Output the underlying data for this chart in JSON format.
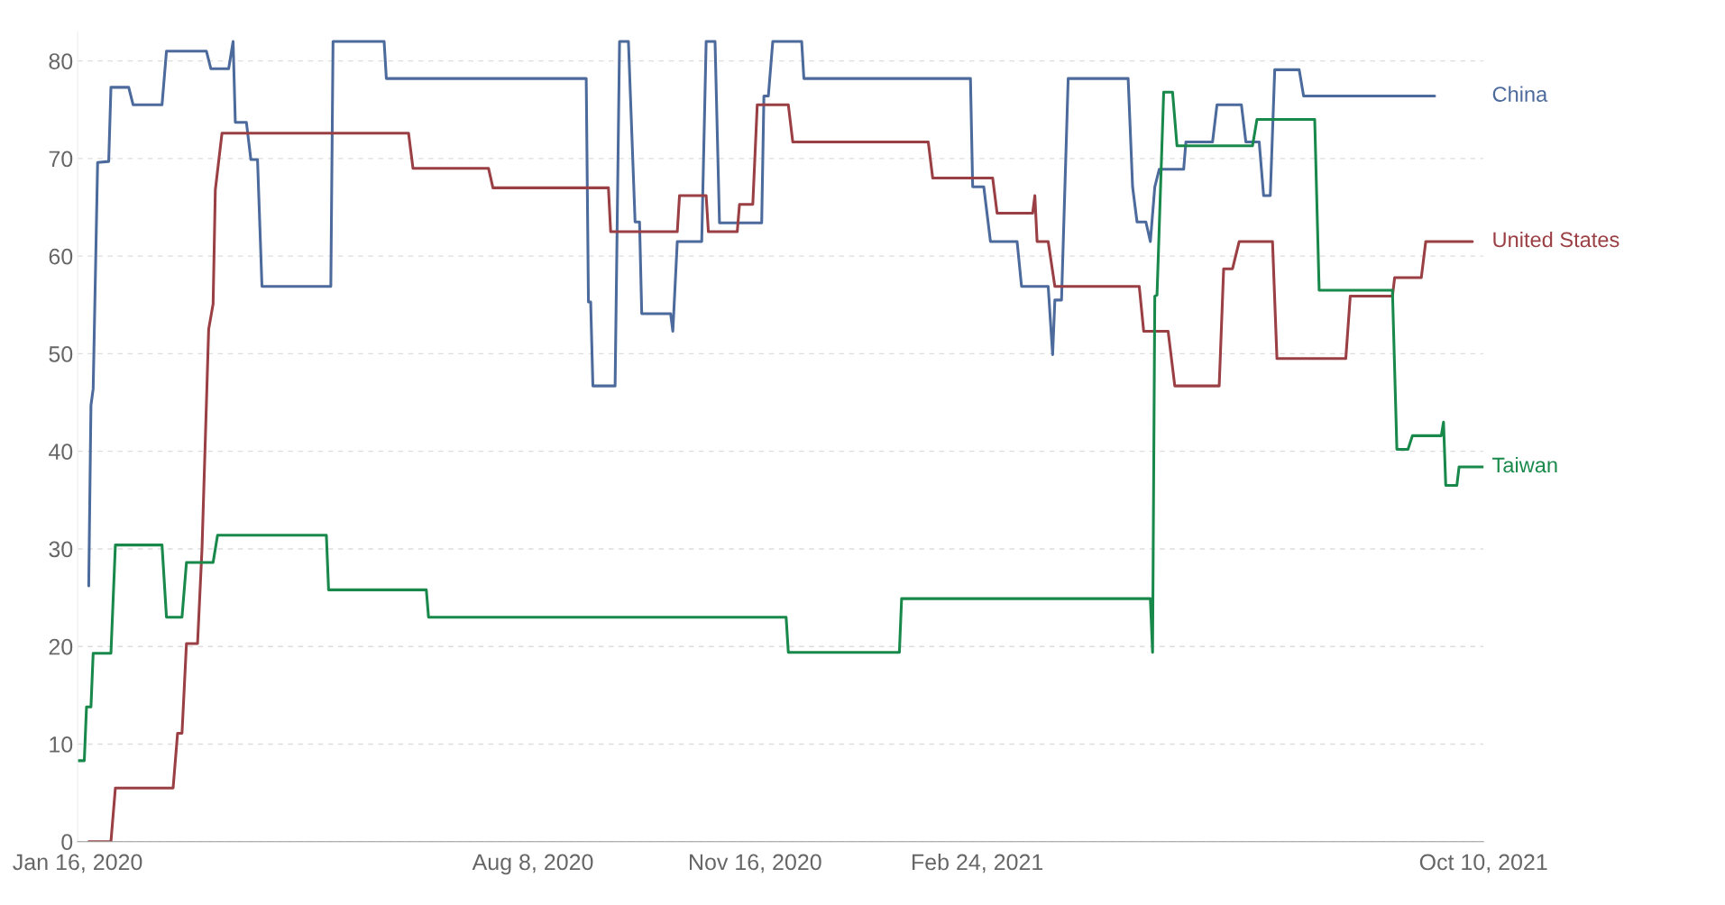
{
  "chart_data": {
    "type": "line",
    "xlim": [
      "2020-01-16",
      "2021-10-10"
    ],
    "xticks": [
      {
        "value": "2020-01-16",
        "label": "Jan 16, 2020"
      },
      {
        "value": "2020-08-08",
        "label": "Aug 8, 2020"
      },
      {
        "value": "2020-11-16",
        "label": "Nov 16, 2020"
      },
      {
        "value": "2021-02-24",
        "label": "Feb 24, 2021"
      },
      {
        "value": "2021-10-10",
        "label": "Oct 10, 2021"
      }
    ],
    "ylim": [
      0,
      83
    ],
    "yticks": [
      0,
      10,
      20,
      30,
      40,
      50,
      60,
      70,
      80
    ],
    "grid": "y",
    "marker": "none",
    "line_style": "solid",
    "series": [
      {
        "name": "China",
        "color": "#4c6a9c",
        "x": [
          "2020-01-21",
          "2020-01-22",
          "2020-01-23",
          "2020-01-25",
          "2020-01-30",
          "2020-01-31",
          "2020-02-08",
          "2020-02-10",
          "2020-02-23",
          "2020-02-25",
          "2020-03-14",
          "2020-03-16",
          "2020-03-24",
          "2020-03-26",
          "2020-03-27",
          "2020-04-01",
          "2020-04-03",
          "2020-04-06",
          "2020-04-08",
          "2020-05-09",
          "2020-05-10",
          "2020-06-02",
          "2020-06-03",
          "2020-09-01",
          "2020-09-02",
          "2020-09-03",
          "2020-09-04",
          "2020-09-14",
          "2020-09-16",
          "2020-09-20",
          "2020-09-23",
          "2020-09-25",
          "2020-09-26",
          "2020-10-09",
          "2020-10-10",
          "2020-10-12",
          "2020-10-23",
          "2020-10-25",
          "2020-10-29",
          "2020-10-31",
          "2020-11-19",
          "2020-11-20",
          "2020-11-22",
          "2020-11-24",
          "2020-12-07",
          "2020-12-08",
          "2021-02-21",
          "2021-02-22",
          "2021-02-27",
          "2021-03-02",
          "2021-03-14",
          "2021-03-16",
          "2021-03-28",
          "2021-03-30",
          "2021-03-31",
          "2021-04-03",
          "2021-04-06",
          "2021-05-03",
          "2021-05-05",
          "2021-05-07",
          "2021-05-11",
          "2021-05-13",
          "2021-05-15",
          "2021-05-17",
          "2021-05-28",
          "2021-05-29",
          "2021-06-10",
          "2021-06-12",
          "2021-06-23",
          "2021-06-25",
          "2021-07-01",
          "2021-07-03",
          "2021-07-06",
          "2021-07-08",
          "2021-07-19",
          "2021-07-21",
          "2021-09-18"
        ],
        "values": [
          26.2,
          44.7,
          46.4,
          69.6,
          69.7,
          77.3,
          77.3,
          75.5,
          75.5,
          81,
          81,
          79.2,
          79.2,
          82,
          73.7,
          73.7,
          69.9,
          69.9,
          56.9,
          56.9,
          82,
          82,
          78.2,
          78.2,
          55.3,
          55.3,
          46.7,
          46.7,
          82,
          82,
          63.5,
          63.5,
          54.1,
          54.1,
          52.3,
          61.5,
          61.5,
          82,
          82,
          63.4,
          63.4,
          76.4,
          76.4,
          82,
          82,
          78.2,
          78.2,
          67.1,
          67.1,
          61.5,
          61.5,
          56.9,
          56.9,
          49.9,
          55.5,
          55.5,
          78.2,
          78.2,
          67.1,
          63.5,
          63.5,
          61.5,
          67.1,
          68.9,
          68.9,
          71.7,
          71.7,
          75.5,
          75.5,
          71.7,
          71.7,
          66.2,
          66.2,
          79.1,
          79.1,
          76.4,
          76.4
        ]
      },
      {
        "name": "United States",
        "color": "#9a3f44",
        "x": [
          "2020-01-21",
          "2020-01-31",
          "2020-02-02",
          "2020-02-28",
          "2020-03-01",
          "2020-03-03",
          "2020-03-05",
          "2020-03-10",
          "2020-03-12",
          "2020-03-15",
          "2020-03-17",
          "2020-03-18",
          "2020-03-21",
          "2020-06-13",
          "2020-06-15",
          "2020-07-19",
          "2020-07-21",
          "2020-09-11",
          "2020-09-12",
          "2020-10-12",
          "2020-10-13",
          "2020-10-25",
          "2020-10-26",
          "2020-11-08",
          "2020-11-09",
          "2020-11-15",
          "2020-11-17",
          "2020-12-01",
          "2020-12-03",
          "2021-02-02",
          "2021-02-04",
          "2021-03-03",
          "2021-03-05",
          "2021-03-21",
          "2021-03-22",
          "2021-03-23",
          "2021-03-28",
          "2021-03-31",
          "2021-05-08",
          "2021-05-10",
          "2021-05-21",
          "2021-05-24",
          "2021-06-13",
          "2021-06-15",
          "2021-06-19",
          "2021-06-22",
          "2021-07-07",
          "2021-07-09",
          "2021-08-09",
          "2021-08-11",
          "2021-08-30",
          "2021-08-31",
          "2021-09-12",
          "2021-09-14",
          "2021-10-05"
        ],
        "values": [
          0,
          0,
          5.5,
          5.5,
          11.1,
          11.1,
          20.3,
          20.3,
          30,
          52.5,
          55.1,
          66.8,
          72.6,
          72.6,
          69,
          69,
          67,
          67,
          62.5,
          62.5,
          66.2,
          66.2,
          62.5,
          62.5,
          65.3,
          65.3,
          75.5,
          75.5,
          71.7,
          71.7,
          68,
          68,
          64.4,
          64.4,
          66.2,
          61.5,
          61.5,
          56.9,
          56.9,
          52.3,
          52.3,
          46.7,
          46.7,
          58.7,
          58.7,
          61.5,
          61.5,
          49.5,
          49.5,
          55.9,
          55.9,
          57.8,
          57.8,
          61.5,
          61.5
        ]
      },
      {
        "name": "Taiwan",
        "color": "#18894a",
        "x": [
          "2020-01-16",
          "2020-01-19",
          "2020-01-20",
          "2020-01-22",
          "2020-01-23",
          "2020-01-31",
          "2020-02-02",
          "2020-02-23",
          "2020-02-25",
          "2020-03-03",
          "2020-03-05",
          "2020-03-17",
          "2020-03-19",
          "2020-05-07",
          "2020-05-08",
          "2020-06-21",
          "2020-06-22",
          "2020-11-30",
          "2020-12-01",
          "2021-01-20",
          "2021-01-21",
          "2021-05-13",
          "2021-05-14",
          "2021-05-15",
          "2021-05-16",
          "2021-05-19",
          "2021-05-23",
          "2021-05-25",
          "2021-06-28",
          "2021-06-30",
          "2021-07-26",
          "2021-07-28",
          "2021-08-30",
          "2021-09-01",
          "2021-09-06",
          "2021-09-08",
          "2021-09-21",
          "2021-09-22",
          "2021-09-23",
          "2021-09-28",
          "2021-09-29",
          "2021-10-10"
        ],
        "values": [
          8.3,
          8.3,
          13.8,
          13.8,
          19.3,
          19.3,
          30.4,
          30.4,
          23,
          23,
          28.6,
          28.6,
          31.4,
          31.4,
          25.8,
          25.8,
          23,
          23,
          19.4,
          19.4,
          24.9,
          24.9,
          19.4,
          55.9,
          56,
          76.8,
          76.8,
          71.3,
          71.3,
          74,
          74,
          56.5,
          56.5,
          40.2,
          40.2,
          41.6,
          41.6,
          43,
          36.5,
          36.5,
          38.4,
          38.4
        ]
      }
    ]
  }
}
